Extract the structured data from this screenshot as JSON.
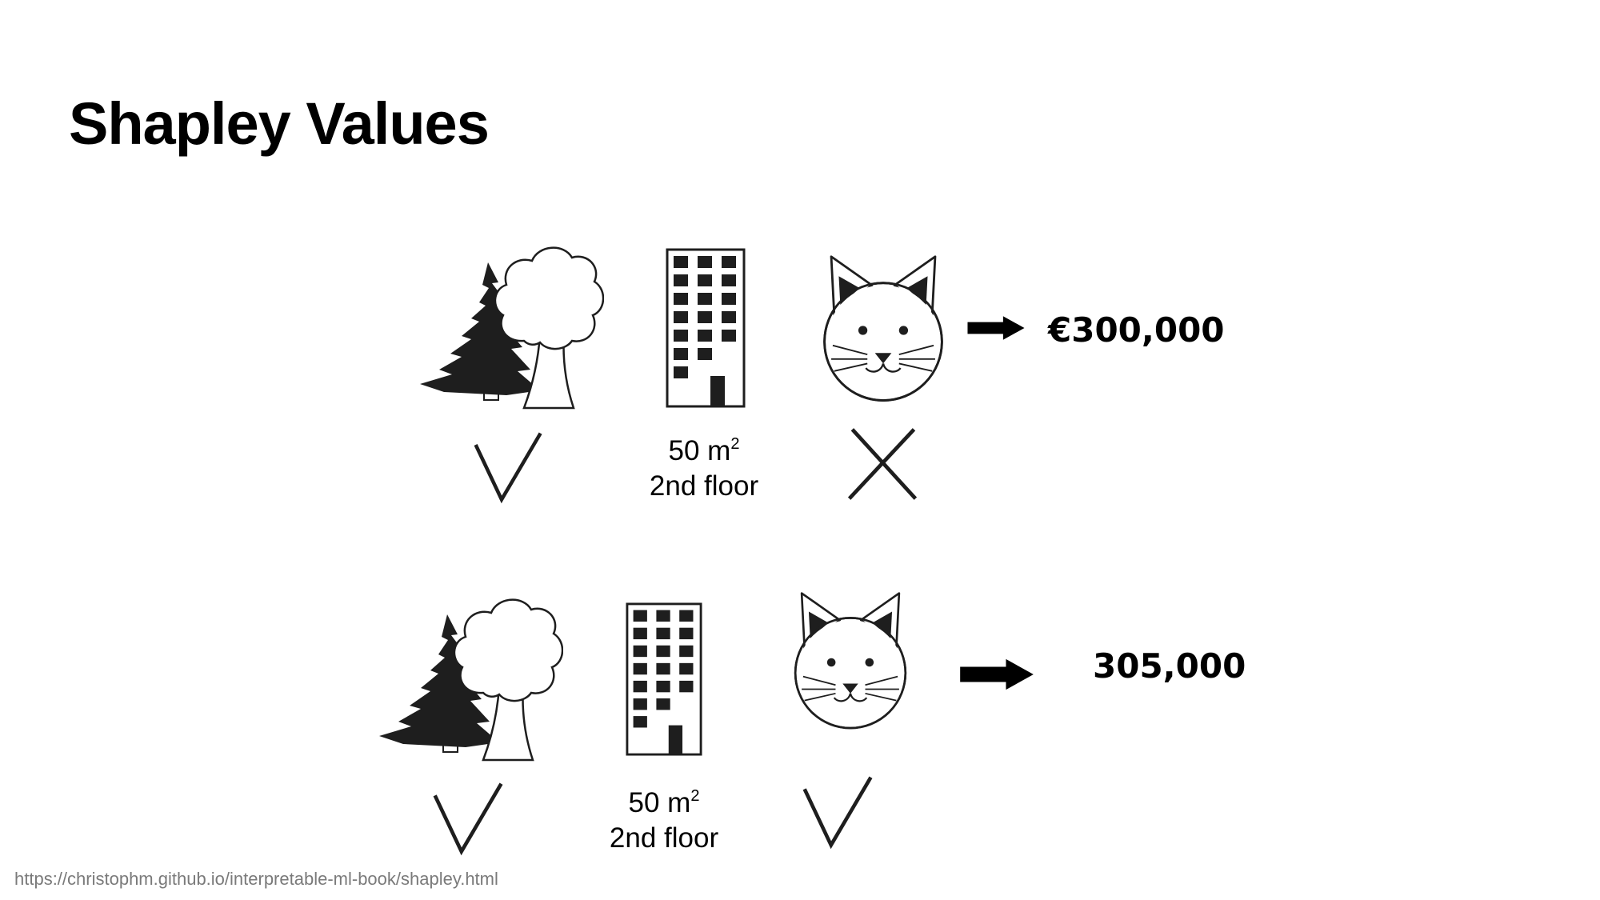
{
  "title": "Shapley Values",
  "rows": [
    {
      "park": "included",
      "size_label": "50 m",
      "size_exponent": "2",
      "floor_label": "2nd floor",
      "cat": "excluded",
      "price": "€300,000"
    },
    {
      "park": "included",
      "size_label": "50 m",
      "size_exponent": "2",
      "floor_label": "2nd floor",
      "cat": "included",
      "price": "305,000"
    }
  ],
  "icons": [
    "tree-icon",
    "building-icon",
    "cat-icon",
    "check-icon",
    "cross-icon",
    "arrow-right-icon"
  ],
  "source_url": "https://christophm.github.io/interpretable-ml-book/shapley.html"
}
